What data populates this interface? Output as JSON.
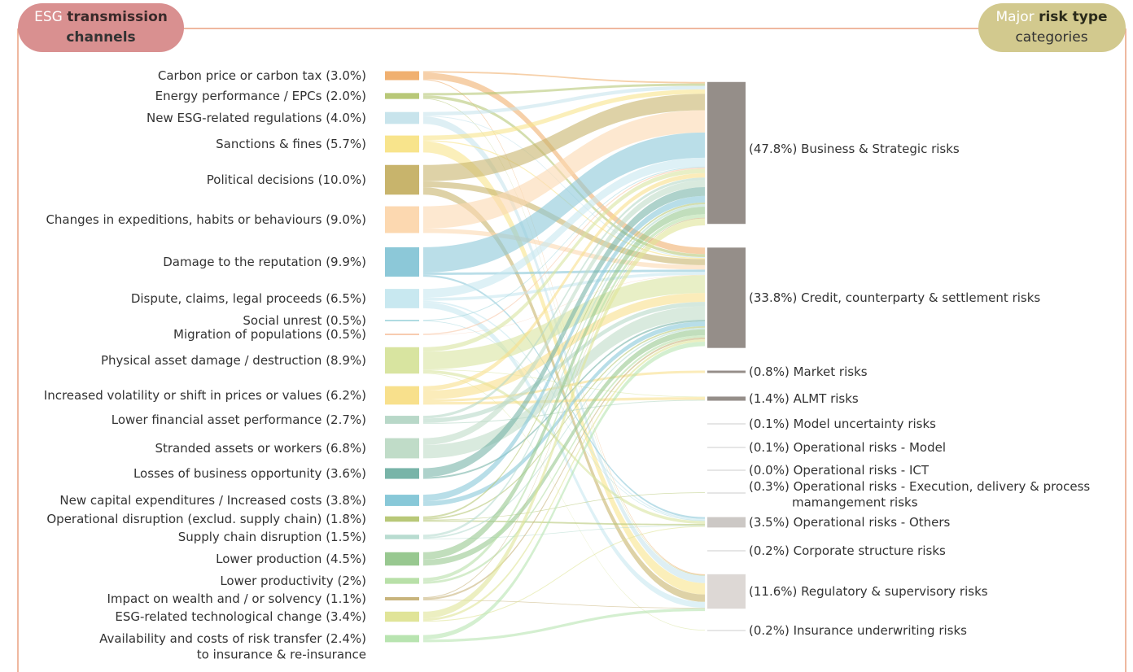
{
  "chart_data": {
    "type": "sankey",
    "left_heading": [
      "ESG",
      "transmission",
      "channels"
    ],
    "right_heading": [
      "Major",
      "risk type",
      "categories"
    ],
    "sources": [
      {
        "name": "Carbon price or carbon tax",
        "value": 3.0,
        "value_label": "(3.0%)",
        "color": "#f0b070"
      },
      {
        "name": "Energy performance / EPCs",
        "value": 2.0,
        "value_label": "(2.0%)",
        "color": "#b8c878"
      },
      {
        "name": "New ESG-related regulations",
        "value": 4.0,
        "value_label": "(4.0%)",
        "color": "#c8e4ec"
      },
      {
        "name": "Sanctions & fines",
        "value": 5.7,
        "value_label": "(5.7%)",
        "color": "#f8e48c"
      },
      {
        "name": "Political decisions",
        "value": 10.0,
        "value_label": "(10.0%)",
        "color": "#c8b46c"
      },
      {
        "name": "Changes in expeditions, habits or behaviours",
        "value": 9.0,
        "value_label": "(9.0%)",
        "color": "#fcd8b0"
      },
      {
        "name": "Damage to the reputation",
        "value": 9.9,
        "value_label": "(9.9%)",
        "color": "#8cc8d8"
      },
      {
        "name": "Dispute, claims, legal proceeds",
        "value": 6.5,
        "value_label": "(6.5%)",
        "color": "#c8e8f0"
      },
      {
        "name": "Social unrest",
        "value": 0.5,
        "value_label": "(0.5%)",
        "color": "#a8d8e0"
      },
      {
        "name": "Migration of populations",
        "value": 0.5,
        "value_label": "(0.5%)",
        "color": "#f8c8a8"
      },
      {
        "name": "Physical asset damage / destruction",
        "value": 8.9,
        "value_label": "(8.9%)",
        "color": "#d8e4a0"
      },
      {
        "name": "Increased volatility or shift in prices or values",
        "value": 6.2,
        "value_label": "(6.2%)",
        "color": "#f8e08c"
      },
      {
        "name": "Lower financial asset performance",
        "value": 2.7,
        "value_label": "(2.7%)",
        "color": "#b8d8c8"
      },
      {
        "name": "Stranded assets or workers",
        "value": 6.8,
        "value_label": "(6.8%)",
        "color": "#c0dcc8"
      },
      {
        "name": "Losses of business opportunity",
        "value": 3.6,
        "value_label": "(3.6%)",
        "color": "#78b4a8"
      },
      {
        "name": "New capital expenditures / Increased costs",
        "value": 3.8,
        "value_label": "(3.8%)",
        "color": "#88c8d8"
      },
      {
        "name": "Operational disruption (exclud. supply chain)",
        "value": 1.8,
        "value_label": "(1.8%)",
        "color": "#b8c878"
      },
      {
        "name": "Supply chain disruption",
        "value": 1.5,
        "value_label": "(1.5%)",
        "color": "#b8dcd0"
      },
      {
        "name": "Lower production",
        "value": 4.5,
        "value_label": "(4.5%)",
        "color": "#98c890"
      },
      {
        "name": "Lower productivity",
        "value": 2,
        "value_label": "(2%)",
        "color": "#b8e0a8"
      },
      {
        "name": "Impact on wealth and / or solvency",
        "value": 1.1,
        "value_label": "(1.1%)",
        "color": "#c8b47c"
      },
      {
        "name": "ESG-related technological change",
        "value": 3.4,
        "value_label": "(3.4%)",
        "color": "#e0e498"
      },
      {
        "name": [
          "Availability and costs of risk transfer",
          "to insurance & re-insurance"
        ],
        "value": 2.4,
        "value_label": "(2.4%)",
        "color": "#b8e4b0"
      }
    ],
    "targets": [
      {
        "name": "Business & Strategic risks",
        "value": 47.8,
        "value_label": "(47.8%)",
        "color": "#958e89"
      },
      {
        "name": "Credit, counterparty & settlement risks",
        "value": 33.8,
        "value_label": "(33.8%)",
        "color": "#958e89"
      },
      {
        "name": "Market risks",
        "value": 0.8,
        "value_label": "(0.8%)",
        "color": "#958e89"
      },
      {
        "name": "ALMT risks",
        "value": 1.4,
        "value_label": "(1.4%)",
        "color": "#958e89"
      },
      {
        "name": "Model uncertainty risks",
        "value": 0.1,
        "value_label": "(0.1%)",
        "color": "#dddddd"
      },
      {
        "name": "Operational risks - Model",
        "value": 0.1,
        "value_label": "(0.1%)",
        "color": "#dddddd"
      },
      {
        "name": "Operational risks - ICT",
        "value": 0.0,
        "value_label": "(0.0%)",
        "color": "#dddddd"
      },
      {
        "name": [
          "Operational risks - Execution, delivery & process",
          "mamangement risks"
        ],
        "value": 0.3,
        "value_label": "(0.3%)",
        "color": "#dddddd"
      },
      {
        "name": "Operational risks - Others",
        "value": 3.5,
        "value_label": "(3.5%)",
        "color": "#ccc8c5"
      },
      {
        "name": "Corporate structure risks",
        "value": 0.2,
        "value_label": "(0.2%)",
        "color": "#dddddd"
      },
      {
        "name": "Regulatory & supervisory risks",
        "value": 11.6,
        "value_label": "(11.6%)",
        "color": "#ddd8d5"
      },
      {
        "name": "Insurance underwriting risks",
        "value": 0.2,
        "value_label": "(0.2%)",
        "color": "#dddddd"
      }
    ],
    "links": [
      {
        "source": 0,
        "target": 0,
        "value": 0.5
      },
      {
        "source": 0,
        "target": 1,
        "value": 2.2
      },
      {
        "source": 0,
        "target": 10,
        "value": 0.3
      },
      {
        "source": 1,
        "target": 0,
        "value": 0.8
      },
      {
        "source": 1,
        "target": 1,
        "value": 1.0
      },
      {
        "source": 1,
        "target": 10,
        "value": 0.2
      },
      {
        "source": 2,
        "target": 0,
        "value": 1.2
      },
      {
        "source": 2,
        "target": 1,
        "value": 0.3
      },
      {
        "source": 2,
        "target": 10,
        "value": 2.5
      },
      {
        "source": 3,
        "target": 0,
        "value": 1.5
      },
      {
        "source": 3,
        "target": 1,
        "value": 0.4
      },
      {
        "source": 3,
        "target": 10,
        "value": 3.8
      },
      {
        "source": 4,
        "target": 0,
        "value": 5.5
      },
      {
        "source": 4,
        "target": 1,
        "value": 2.0
      },
      {
        "source": 4,
        "target": 10,
        "value": 2.5
      },
      {
        "source": 5,
        "target": 0,
        "value": 7.5
      },
      {
        "source": 5,
        "target": 1,
        "value": 1.5
      },
      {
        "source": 6,
        "target": 0,
        "value": 8.5
      },
      {
        "source": 6,
        "target": 1,
        "value": 0.8
      },
      {
        "source": 6,
        "target": 8,
        "value": 0.6
      },
      {
        "source": 7,
        "target": 0,
        "value": 3.0
      },
      {
        "source": 7,
        "target": 1,
        "value": 1.0
      },
      {
        "source": 7,
        "target": 8,
        "value": 0.5
      },
      {
        "source": 7,
        "target": 10,
        "value": 2.0
      },
      {
        "source": 8,
        "target": 0,
        "value": 0.3
      },
      {
        "source": 8,
        "target": 8,
        "value": 0.2
      },
      {
        "source": 9,
        "target": 0,
        "value": 0.4
      },
      {
        "source": 9,
        "target": 1,
        "value": 0.1
      },
      {
        "source": 10,
        "target": 0,
        "value": 1.5
      },
      {
        "source": 10,
        "target": 1,
        "value": 6.0
      },
      {
        "source": 10,
        "target": 3,
        "value": 0.2
      },
      {
        "source": 10,
        "target": 8,
        "value": 1.0
      },
      {
        "source": 10,
        "target": 11,
        "value": 0.2
      },
      {
        "source": 11,
        "target": 0,
        "value": 1.5
      },
      {
        "source": 11,
        "target": 1,
        "value": 3.0
      },
      {
        "source": 11,
        "target": 2,
        "value": 0.8
      },
      {
        "source": 11,
        "target": 3,
        "value": 0.9
      },
      {
        "source": 12,
        "target": 0,
        "value": 0.9
      },
      {
        "source": 12,
        "target": 1,
        "value": 1.5
      },
      {
        "source": 12,
        "target": 3,
        "value": 0.3
      },
      {
        "source": 13,
        "target": 0,
        "value": 2.3
      },
      {
        "source": 13,
        "target": 1,
        "value": 4.5
      },
      {
        "source": 14,
        "target": 0,
        "value": 3.0
      },
      {
        "source": 14,
        "target": 1,
        "value": 0.6
      },
      {
        "source": 15,
        "target": 0,
        "value": 2.2
      },
      {
        "source": 15,
        "target": 1,
        "value": 1.6
      },
      {
        "source": 16,
        "target": 0,
        "value": 0.6
      },
      {
        "source": 16,
        "target": 1,
        "value": 0.5
      },
      {
        "source": 16,
        "target": 7,
        "value": 0.2
      },
      {
        "source": 16,
        "target": 8,
        "value": 0.5
      },
      {
        "source": 17,
        "target": 0,
        "value": 0.8
      },
      {
        "source": 17,
        "target": 1,
        "value": 0.5
      },
      {
        "source": 17,
        "target": 8,
        "value": 0.2
      },
      {
        "source": 18,
        "target": 0,
        "value": 2.5
      },
      {
        "source": 18,
        "target": 1,
        "value": 2.0
      },
      {
        "source": 19,
        "target": 0,
        "value": 1.2
      },
      {
        "source": 19,
        "target": 1,
        "value": 0.8
      },
      {
        "source": 20,
        "target": 0,
        "value": 0.3
      },
      {
        "source": 20,
        "target": 1,
        "value": 0.6
      },
      {
        "source": 20,
        "target": 10,
        "value": 0.2
      },
      {
        "source": 21,
        "target": 0,
        "value": 2.3
      },
      {
        "source": 21,
        "target": 1,
        "value": 0.8
      },
      {
        "source": 21,
        "target": 8,
        "value": 0.3
      },
      {
        "source": 22,
        "target": 1,
        "value": 1.5
      },
      {
        "source": 22,
        "target": 10,
        "value": 0.9
      }
    ]
  }
}
